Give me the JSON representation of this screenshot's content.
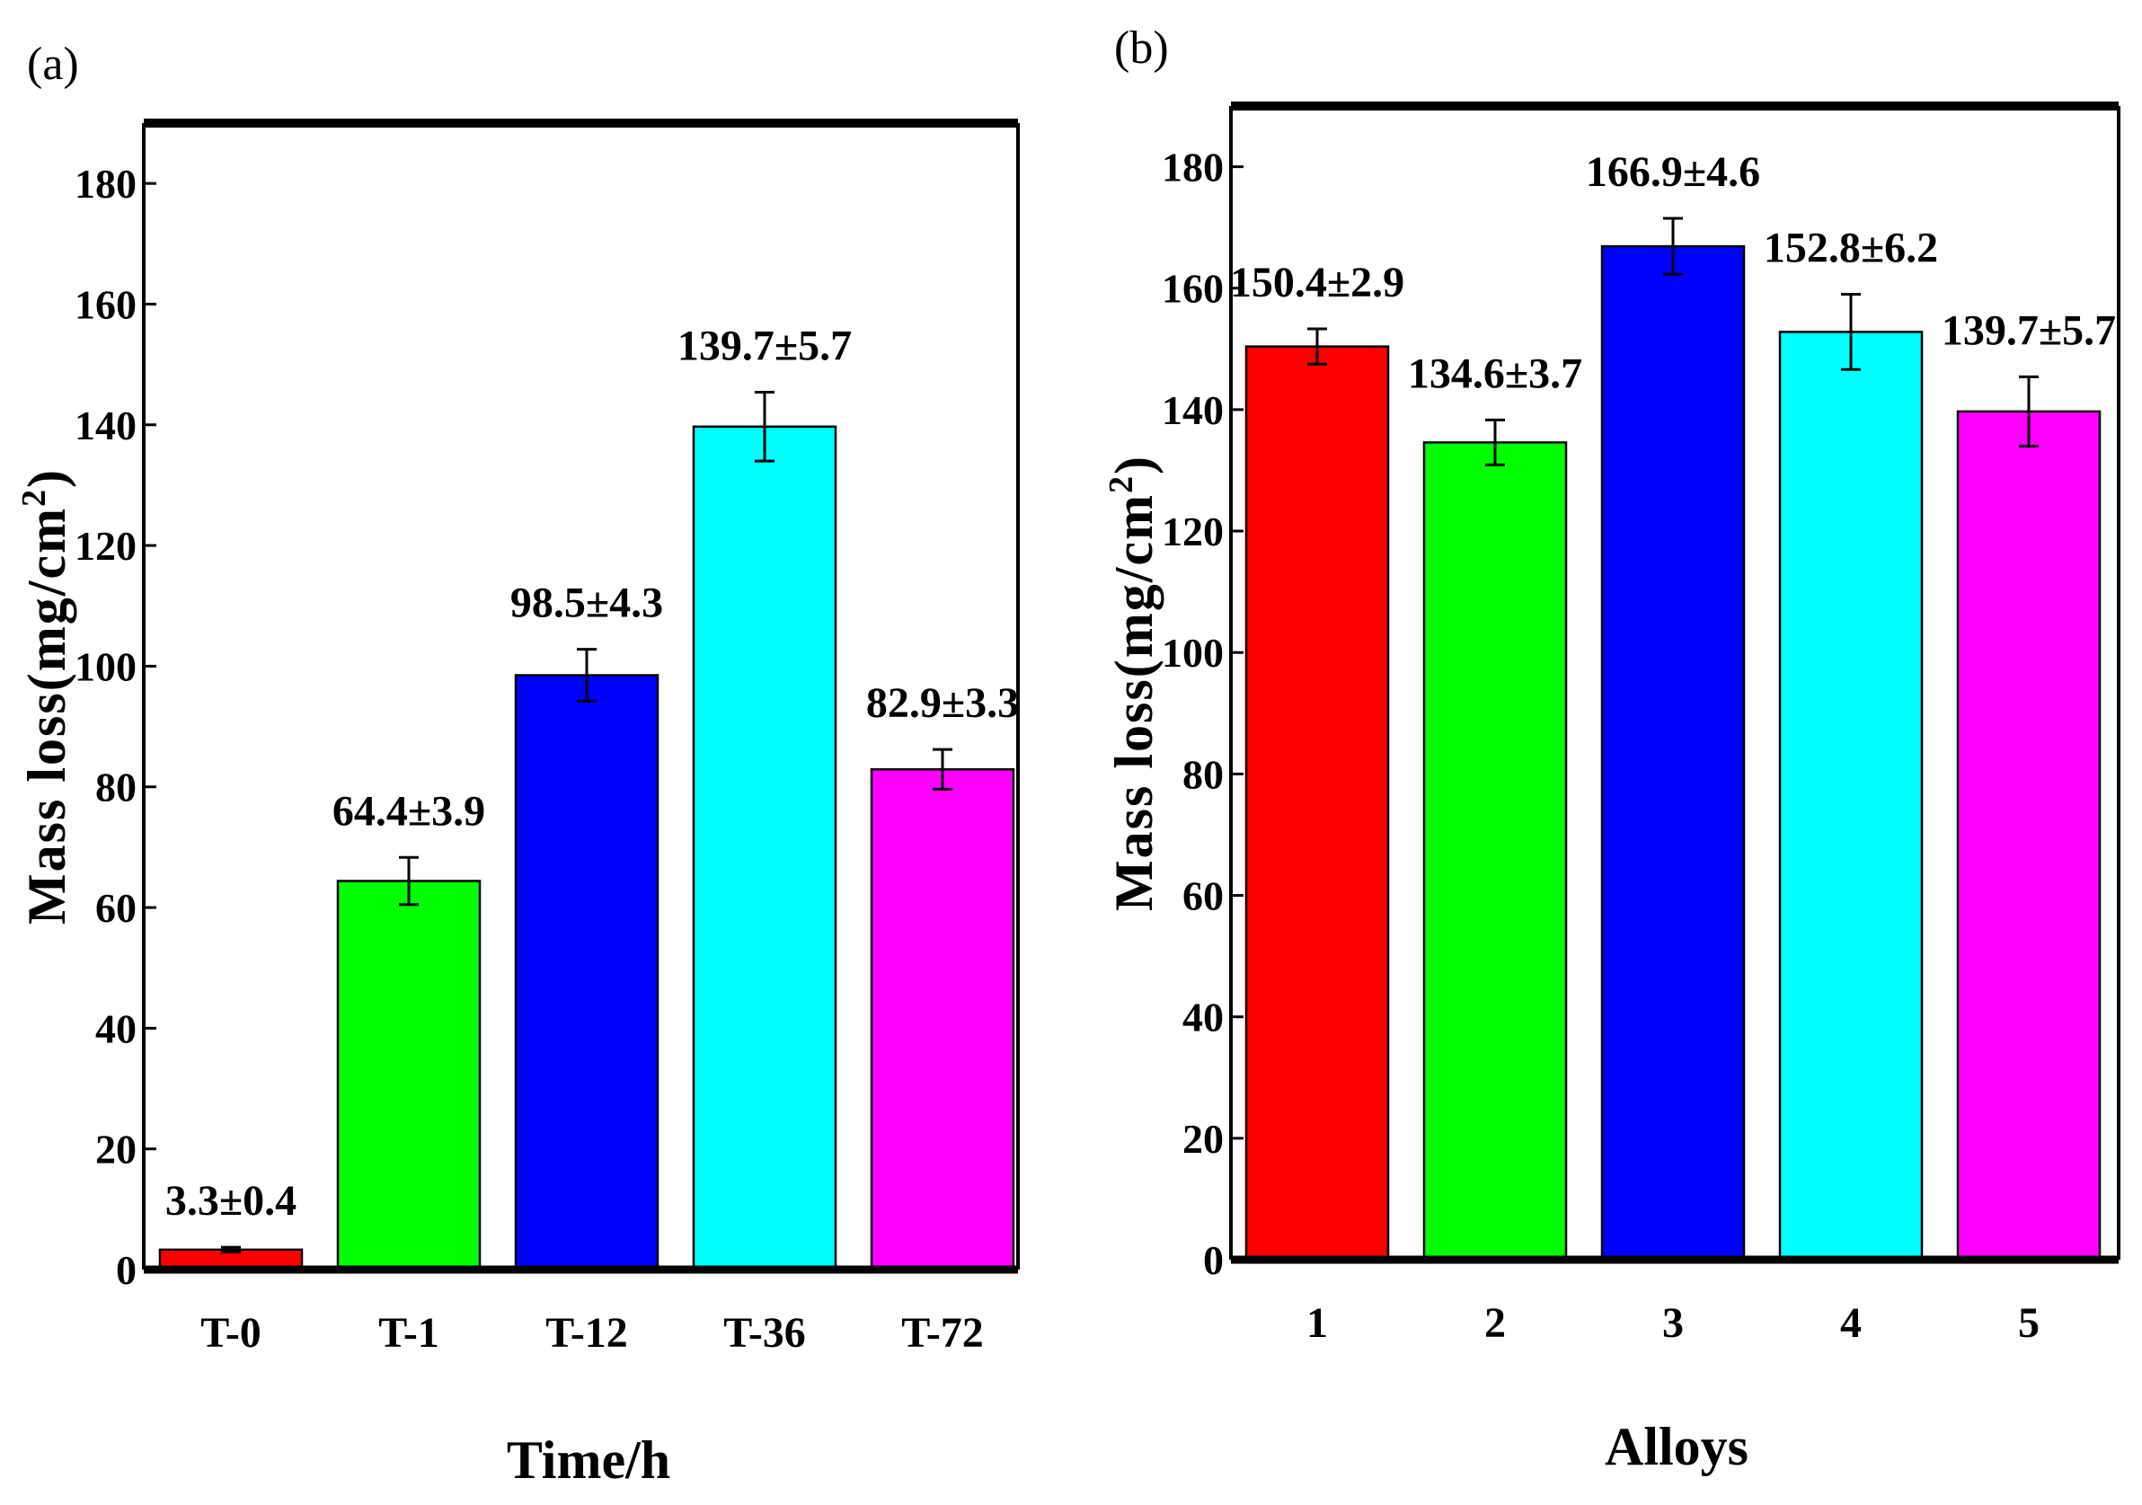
{
  "chart_data": [
    {
      "type": "bar",
      "panel_label": "(a)",
      "categories": [
        "T-0",
        "T-1",
        "T-12",
        "T-36",
        "T-72"
      ],
      "values": [
        3.3,
        64.4,
        98.5,
        139.7,
        82.9
      ],
      "errors": [
        0.4,
        3.9,
        4.3,
        5.7,
        3.3
      ],
      "data_labels": [
        "3.3±0.4",
        "64.4±3.9",
        "98.5±4.3",
        "139.7±5.7",
        "82.9±3.3"
      ],
      "colors": [
        "#ff0000",
        "#00ff00",
        "#0000ff",
        "#00ffff",
        "#ff00ff"
      ],
      "xlabel": "Time/h",
      "ylabel": "Mass loss(mg/cm",
      "ylabel_sup": "2",
      "ylabel_close": ")",
      "ylim": [
        0,
        190
      ],
      "yticks": [
        0,
        20,
        40,
        60,
        80,
        100,
        120,
        140,
        160,
        180
      ],
      "grid": false,
      "legend": "none"
    },
    {
      "type": "bar",
      "panel_label": "(b)",
      "categories": [
        "1",
        "2",
        "3",
        "4",
        "5"
      ],
      "values": [
        150.4,
        134.6,
        166.9,
        152.8,
        139.7
      ],
      "errors": [
        2.9,
        3.7,
        4.6,
        6.2,
        5.7
      ],
      "data_labels": [
        "150.4±2.9",
        "134.6±3.7",
        "166.9±4.6",
        "152.8±6.2",
        "139.7±5.7"
      ],
      "colors": [
        "#ff0000",
        "#00ff00",
        "#0000ff",
        "#00ffff",
        "#ff00ff"
      ],
      "xlabel": "Alloys",
      "ylabel": "Mass loss(mg/cm",
      "ylabel_sup": "2",
      "ylabel_close": ")",
      "ylim": [
        0,
        190
      ],
      "yticks": [
        0,
        20,
        40,
        60,
        80,
        100,
        120,
        140,
        160,
        180
      ],
      "grid": false,
      "legend": "none"
    }
  ]
}
